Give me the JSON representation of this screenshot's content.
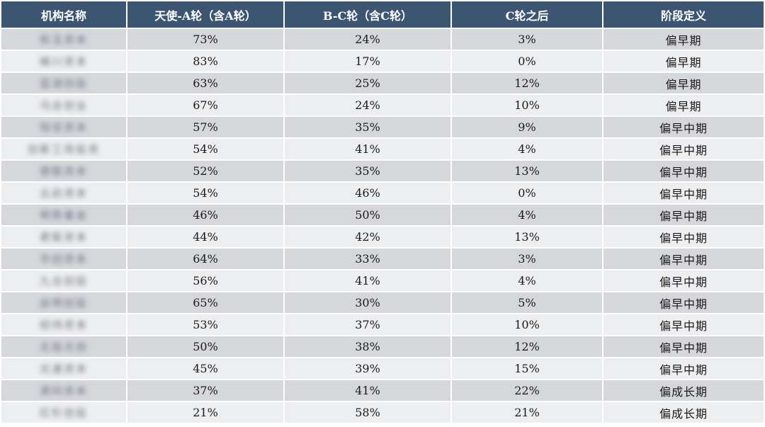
{
  "headers": [
    "机构名称",
    "天使-A轮（含A轮）",
    "B-C轮（含C轮）",
    "C轮之后",
    "阶段定义"
  ],
  "rows": [
    {
      "name": "和玉资本",
      "a": "73%",
      "bc": "24%",
      "c": "3%",
      "stage": "偏早期"
    },
    {
      "name": "峰川资本",
      "a": "83%",
      "bc": "17%",
      "c": "0%",
      "stage": "偏早期"
    },
    {
      "name": "蓝湖创投",
      "a": "63%",
      "bc": "25%",
      "c": "12%",
      "stage": "偏早期"
    },
    {
      "name": "乌谷创业",
      "a": "67%",
      "bc": "24%",
      "c": "10%",
      "stage": "偏早期"
    },
    {
      "name": "恒信资本",
      "a": "57%",
      "bc": "35%",
      "c": "9%",
      "stage": "偏早中期"
    },
    {
      "name": "创新工场投资",
      "a": "54%",
      "bc": "41%",
      "c": "4%",
      "stage": "偏早中期"
    },
    {
      "name": "德联资本",
      "a": "52%",
      "bc": "35%",
      "c": "13%",
      "stage": "偏早中期"
    },
    {
      "name": "云启资本",
      "a": "54%",
      "bc": "46%",
      "c": "0%",
      "stage": "偏早中期"
    },
    {
      "name": "明势基金",
      "a": "46%",
      "bc": "50%",
      "c": "4%",
      "stage": "偏早中期"
    },
    {
      "name": "君联资本",
      "a": "44%",
      "bc": "42%",
      "c": "13%",
      "stage": "偏早中期"
    },
    {
      "name": "华创资本",
      "a": "64%",
      "bc": "33%",
      "c": "3%",
      "stage": "偏早中期"
    },
    {
      "name": "九合创投",
      "a": "56%",
      "bc": "41%",
      "c": "4%",
      "stage": "偏早中期"
    },
    {
      "name": "启明创投",
      "a": "65%",
      "bc": "30%",
      "c": "5%",
      "stage": "偏早中期"
    },
    {
      "name": "经纬资本",
      "a": "53%",
      "bc": "37%",
      "c": "10%",
      "stage": "偏早中期"
    },
    {
      "name": "北极光创",
      "a": "50%",
      "bc": "38%",
      "c": "12%",
      "stage": "偏早中期"
    },
    {
      "name": "光速资本",
      "a": "45%",
      "bc": "39%",
      "c": "15%",
      "stage": "偏早中期"
    },
    {
      "name": "源码资本",
      "a": "37%",
      "bc": "41%",
      "c": "22%",
      "stage": "偏成长期"
    },
    {
      "name": "红杉创投",
      "a": "21%",
      "bc": "58%",
      "c": "21%",
      "stage": "偏成长期"
    }
  ]
}
